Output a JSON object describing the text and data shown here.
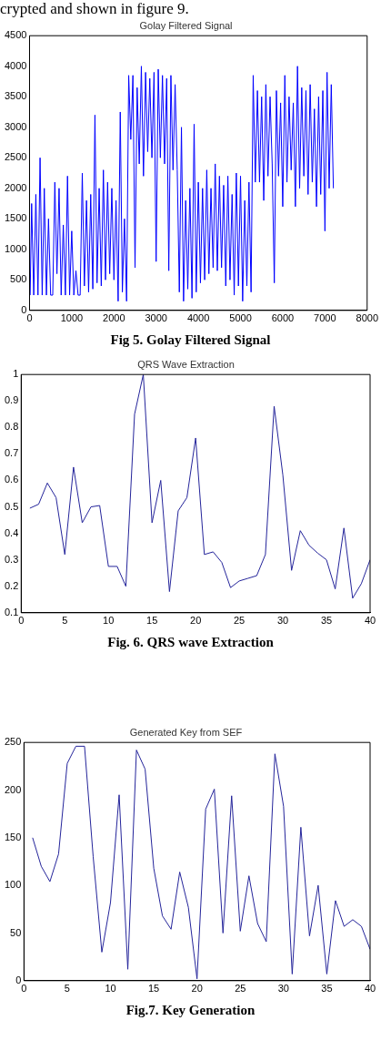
{
  "chart_data": [
    {
      "type": "line",
      "title": "Golay Filtered Signal",
      "annotations": [
        "crypted and shown in figure 9.",
        "Fig 5. Golay Filtered Signal"
      ],
      "xlim": [
        0,
        8000
      ],
      "xticks": [
        0,
        1000,
        2000,
        3000,
        4000,
        5000,
        6000,
        7000,
        8000
      ],
      "ylim": [
        0,
        4500
      ],
      "yticks": [
        0,
        500,
        1000,
        1500,
        2000,
        2500,
        3000,
        3500,
        4000,
        4500
      ],
      "x": [
        15,
        50,
        100,
        150,
        200,
        250,
        300,
        350,
        400,
        450,
        500,
        550,
        600,
        650,
        700,
        750,
        800,
        850,
        900,
        950,
        1000,
        1050,
        1100,
        1150,
        1200,
        1250,
        1300,
        1350,
        1400,
        1450,
        1500,
        1550,
        1600,
        1650,
        1700,
        1750,
        1800,
        1850,
        1900,
        1950,
        2000,
        2050,
        2100,
        2150,
        2200,
        2250,
        2300,
        2350,
        2400,
        2450,
        2500,
        2550,
        2600,
        2650,
        2700,
        2750,
        2800,
        2850,
        2900,
        2950,
        3000,
        3050,
        3100,
        3150,
        3200,
        3250,
        3300,
        3350,
        3400,
        3450,
        3500,
        3550,
        3600,
        3650,
        3700,
        3750,
        3800,
        3850,
        3900,
        3950,
        4000,
        4050,
        4100,
        4150,
        4200,
        4250,
        4300,
        4350,
        4400,
        4450,
        4500,
        4550,
        4600,
        4650,
        4700,
        4750,
        4800,
        4850,
        4900,
        4950,
        5000,
        5050,
        5100,
        5150,
        5200,
        5250,
        5300,
        5350,
        5400,
        5450,
        5500,
        5550,
        5600,
        5650,
        5700,
        5750,
        5800,
        5850,
        5900,
        5950,
        6000,
        6050,
        6100,
        6150,
        6200,
        6250,
        6300,
        6350,
        6400,
        6450,
        6500,
        6550,
        6600,
        6650,
        6700,
        6750,
        6800,
        6850,
        6900,
        6950,
        7000,
        7050,
        7100,
        7150,
        7200
      ],
      "series": [
        {
          "color": "#0000ff",
          "values": [
            250,
            1750,
            250,
            1900,
            250,
            2500,
            250,
            2000,
            250,
            1500,
            250,
            250,
            2100,
            600,
            2000,
            250,
            1400,
            250,
            2200,
            250,
            1300,
            250,
            650,
            250,
            250,
            2250,
            400,
            1800,
            300,
            1900,
            350,
            3200,
            450,
            2000,
            400,
            2300,
            500,
            2100,
            600,
            2000,
            500,
            1800,
            150,
            3250,
            300,
            1500,
            150,
            3850,
            2800,
            3850,
            700,
            3650,
            2400,
            4000,
            2200,
            3900,
            2600,
            3800,
            2500,
            3900,
            800,
            3950,
            2500,
            3850,
            2400,
            3800,
            650,
            3850,
            2300,
            3700,
            2300,
            300,
            3000,
            150,
            1800,
            350,
            2000,
            200,
            3050,
            300,
            2100,
            450,
            2000,
            500,
            2300,
            600,
            2000,
            700,
            2400,
            650,
            2200,
            700,
            2050,
            400,
            2200,
            500,
            1900,
            250,
            2250,
            400,
            2200,
            150,
            1800,
            400,
            2100,
            300,
            3850,
            2100,
            3600,
            2100,
            3500,
            1800,
            3700,
            2200,
            3500,
            2400,
            450,
            3600,
            2200,
            3400,
            1700,
            3850,
            2100,
            3500,
            2300,
            3400,
            1700,
            4000,
            2000,
            3650,
            2200,
            3600,
            1900,
            3700,
            2100,
            3300,
            1700,
            3500,
            1900,
            3600,
            1300,
            3900,
            2000,
            3700,
            2000
          ]
        }
      ]
    },
    {
      "type": "line",
      "title": "QRS Wave Extraction",
      "annotations": [
        "Fig. 6.  QRS wave Extraction"
      ],
      "xlim": [
        0,
        40
      ],
      "xticks": [
        0,
        5,
        10,
        15,
        20,
        25,
        30,
        35,
        40
      ],
      "ylim": [
        0.1,
        1
      ],
      "yticks": [
        0.1,
        0.2,
        0.3,
        0.4,
        0.5,
        0.6,
        0.7,
        0.8,
        0.9,
        1
      ],
      "x": [
        1,
        2,
        3,
        4,
        5,
        6,
        7,
        8,
        9,
        10,
        11,
        12,
        13,
        14,
        15,
        16,
        17,
        18,
        19,
        20,
        21,
        22,
        23,
        24,
        25,
        26,
        27,
        28,
        29,
        30,
        31,
        32,
        33,
        34,
        35,
        36,
        37,
        38,
        39,
        40
      ],
      "series": [
        {
          "color": "#24249a",
          "values": [
            0.495,
            0.51,
            0.59,
            0.535,
            0.32,
            0.65,
            0.44,
            0.5,
            0.505,
            0.275,
            0.275,
            0.2,
            0.85,
            1.0,
            0.44,
            0.6,
            0.18,
            0.485,
            0.535,
            0.76,
            0.32,
            0.33,
            0.29,
            0.195,
            0.22,
            0.23,
            0.24,
            0.32,
            0.88,
            0.62,
            0.26,
            0.41,
            0.355,
            0.325,
            0.3,
            0.19,
            0.42,
            0.155,
            0.21,
            0.3
          ]
        }
      ]
    },
    {
      "type": "line",
      "title": "Generated Key from SEF",
      "annotations": [
        "Fig.7. Key Generation"
      ],
      "xlim": [
        0,
        40
      ],
      "xticks": [
        0,
        5,
        10,
        15,
        20,
        25,
        30,
        35,
        40
      ],
      "ylim": [
        0,
        250
      ],
      "yticks": [
        0,
        50,
        100,
        150,
        200,
        250
      ],
      "x": [
        1,
        2,
        3,
        4,
        5,
        6,
        7,
        8,
        9,
        10,
        11,
        12,
        13,
        14,
        15,
        16,
        17,
        18,
        19,
        20,
        21,
        22,
        23,
        24,
        25,
        26,
        27,
        28,
        29,
        30,
        31,
        32,
        33,
        34,
        35,
        36,
        37,
        38,
        39,
        40
      ],
      "series": [
        {
          "color": "#24249a",
          "values": [
            150,
            120,
            104,
            133,
            228,
            246,
            246,
            130,
            30,
            82,
            195,
            12,
            242,
            222,
            118,
            68,
            54,
            114,
            77,
            2,
            180,
            201,
            50,
            194,
            52,
            110,
            60,
            41,
            238,
            183,
            7,
            161,
            47,
            100,
            7,
            84,
            57,
            64,
            57,
            33
          ]
        }
      ]
    }
  ]
}
